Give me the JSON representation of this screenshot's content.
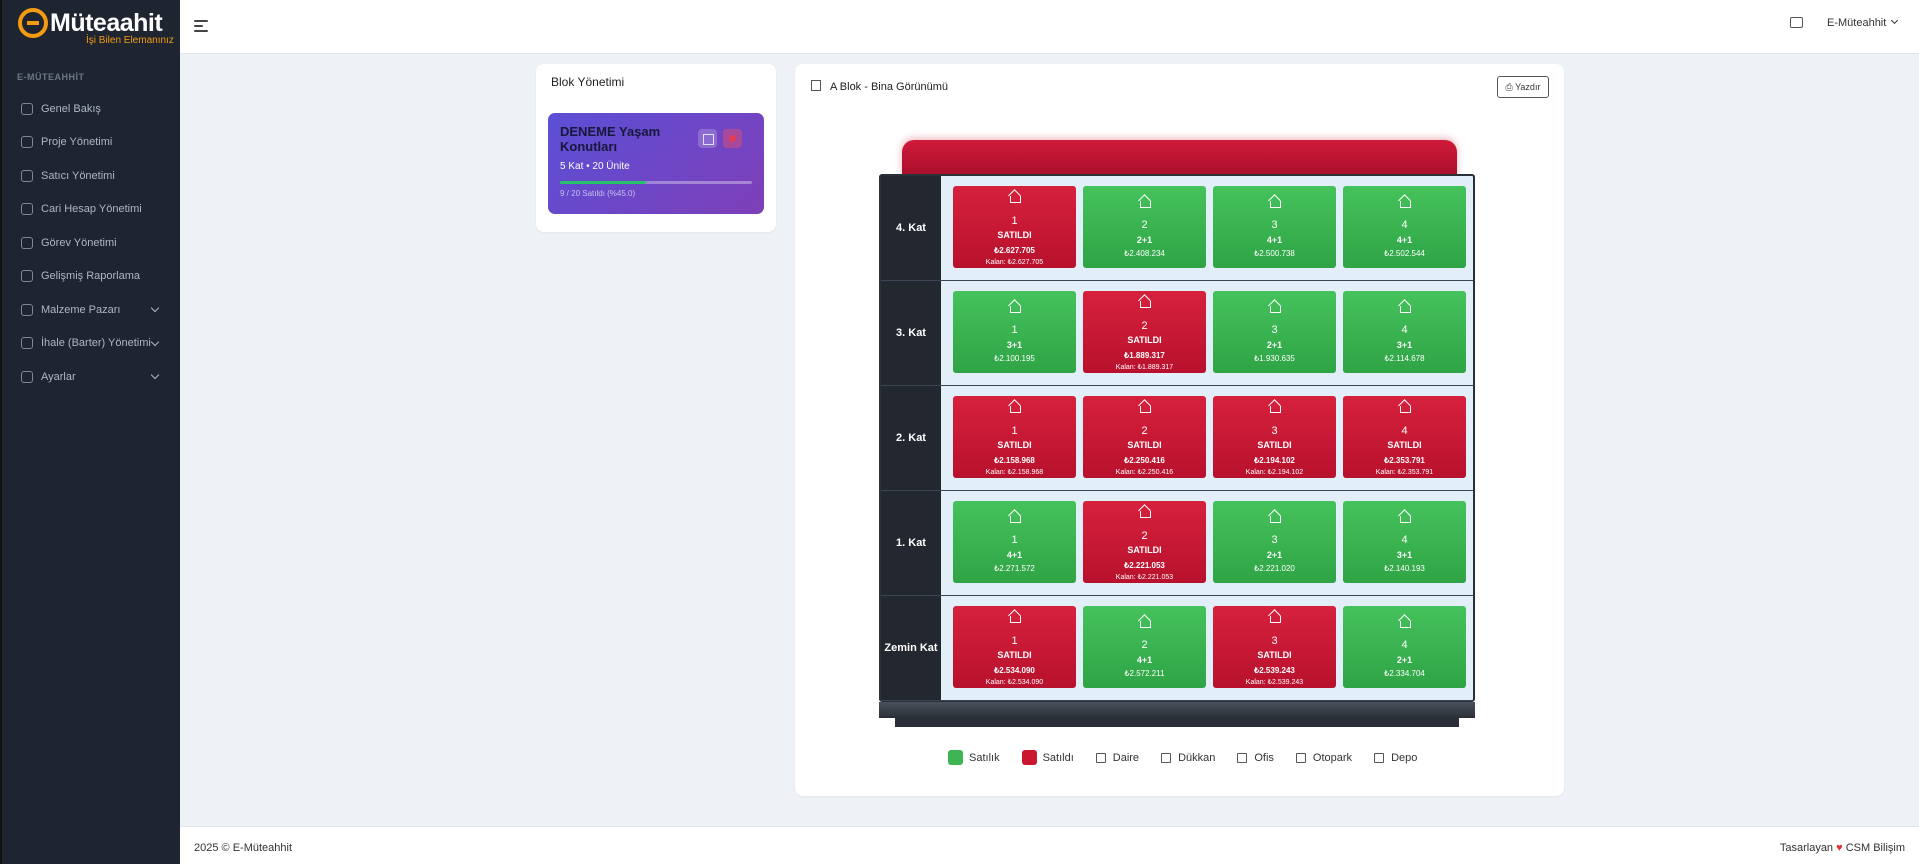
{
  "brand": {
    "logo_text": "Müteaahit",
    "logo_letter": "e",
    "tagline": "İşi Bilen Elemanınız"
  },
  "sidebar": {
    "section_label": "E-MÜTEAHHİT",
    "items": [
      {
        "label": "Genel Bakış",
        "icon": "building-icon"
      },
      {
        "label": "Proje Yönetimi",
        "icon": "building-icon"
      },
      {
        "label": "Satıcı Yönetimi",
        "icon": "briefcase-icon"
      },
      {
        "label": "Cari Hesap Yönetimi",
        "icon": "user-icon"
      },
      {
        "label": "Görev Yönetimi",
        "icon": "user-icon"
      },
      {
        "label": "Gelişmiş Raporlama",
        "icon": "user-icon"
      },
      {
        "label": "Malzeme Pazarı",
        "icon": "user-icon"
      },
      {
        "label": "İhale (Barter) Yönetimi",
        "icon": "user-icon"
      },
      {
        "label": "Ayarlar",
        "icon": "gear-icon"
      }
    ]
  },
  "topbar": {
    "user": "E-Müteahhit"
  },
  "block_panel": {
    "title": "Blok Yönetimi",
    "project": {
      "name": "DENEME Yaşam Konutları",
      "info": "5 Kat • 20 Ünite",
      "progress_text": "9 / 20 Satıldı (%45.0)",
      "progress": 0.45
    }
  },
  "building": {
    "title": "A Blok - Bina Görünümü",
    "print_label": "Yazdır",
    "floors": [
      {
        "label": "4. Kat",
        "units": [
          {
            "no": "1",
            "status": "SATILDI",
            "price": "₺2.627.705",
            "remaining": "Kalan: ₺2.627.705",
            "sold": true
          },
          {
            "no": "2",
            "status": "2+1",
            "price": "₺2.408.234",
            "remaining": "",
            "sold": false
          },
          {
            "no": "3",
            "status": "4+1",
            "price": "₺2.500.738",
            "remaining": "",
            "sold": false
          },
          {
            "no": "4",
            "status": "4+1",
            "price": "₺2.502.544",
            "remaining": "",
            "sold": false
          }
        ]
      },
      {
        "label": "3. Kat",
        "units": [
          {
            "no": "1",
            "status": "3+1",
            "price": "₺2.100.195",
            "remaining": "",
            "sold": false
          },
          {
            "no": "2",
            "status": "SATILDI",
            "price": "₺1.889.317",
            "remaining": "Kalan: ₺1.889.317",
            "sold": true
          },
          {
            "no": "3",
            "status": "2+1",
            "price": "₺1.930.635",
            "remaining": "",
            "sold": false
          },
          {
            "no": "4",
            "status": "3+1",
            "price": "₺2.114.678",
            "remaining": "",
            "sold": false
          }
        ]
      },
      {
        "label": "2. Kat",
        "units": [
          {
            "no": "1",
            "status": "SATILDI",
            "price": "₺2.158.968",
            "remaining": "Kalan: ₺2.158.968",
            "sold": true
          },
          {
            "no": "2",
            "status": "SATILDI",
            "price": "₺2.250.416",
            "remaining": "Kalan: ₺2.250.416",
            "sold": true
          },
          {
            "no": "3",
            "status": "SATILDI",
            "price": "₺2.194.102",
            "remaining": "Kalan: ₺2.194.102",
            "sold": true
          },
          {
            "no": "4",
            "status": "SATILDI",
            "price": "₺2.353.791",
            "remaining": "Kalan: ₺2.353.791",
            "sold": true
          }
        ]
      },
      {
        "label": "1. Kat",
        "units": [
          {
            "no": "1",
            "status": "4+1",
            "price": "₺2.271.572",
            "remaining": "",
            "sold": false
          },
          {
            "no": "2",
            "status": "SATILDI",
            "price": "₺2.221.053",
            "remaining": "Kalan: ₺2.221.053",
            "sold": true
          },
          {
            "no": "3",
            "status": "2+1",
            "price": "₺2.221.020",
            "remaining": "",
            "sold": false
          },
          {
            "no": "4",
            "status": "3+1",
            "price": "₺2.140.193",
            "remaining": "",
            "sold": false
          }
        ]
      },
      {
        "label": "Zemin Kat",
        "units": [
          {
            "no": "1",
            "status": "SATILDI",
            "price": "₺2.534.090",
            "remaining": "Kalan: ₺2.534.090",
            "sold": true
          },
          {
            "no": "2",
            "status": "4+1",
            "price": "₺2.572.211",
            "remaining": "",
            "sold": false
          },
          {
            "no": "3",
            "status": "SATILDI",
            "price": "₺2.539.243",
            "remaining": "Kalan: ₺2.539.243",
            "sold": true
          },
          {
            "no": "4",
            "status": "2+1",
            "price": "₺2.334.704",
            "remaining": "",
            "sold": false
          }
        ]
      }
    ]
  },
  "legend": {
    "for_sale": "Satılık",
    "sold": "Satıldı",
    "flat": "Daire",
    "shop": "Dükkan",
    "office": "Ofis",
    "parking": "Otopark",
    "storage": "Depo"
  },
  "footer": {
    "copyright": "2025 © E-Müteahhit",
    "designed_by": "Tasarlayan",
    "heart": "♥",
    "company": "CSM Bilişim"
  },
  "colors": {
    "sold": "#c8172f",
    "for_sale": "#3cb552",
    "accent": "#f39c12",
    "sidebar_bg": "#1f2530"
  }
}
